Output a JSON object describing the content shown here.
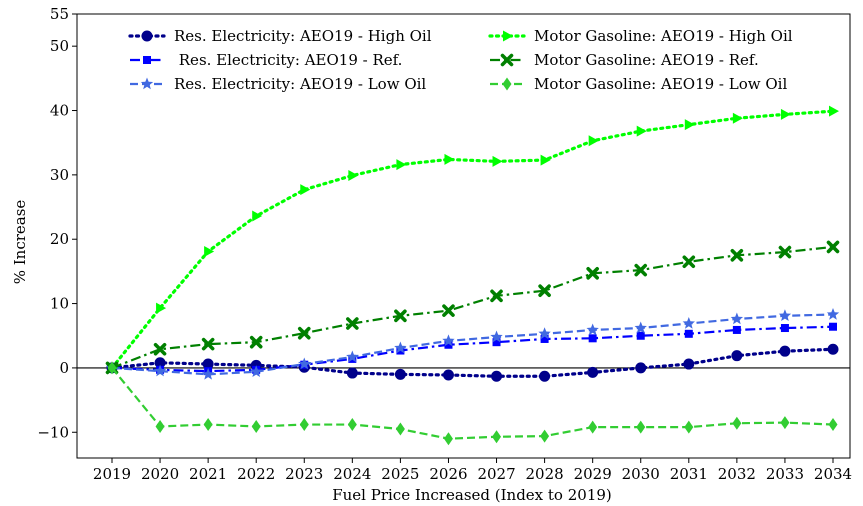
{
  "chart_data": {
    "type": "line",
    "title": "",
    "xlabel": "Fuel Price Increased (Index to 2019)",
    "ylabel": "% Increase",
    "x": [
      "2019",
      "2020",
      "2021",
      "2022",
      "2023",
      "2024",
      "2025",
      "2026",
      "2027",
      "2028",
      "2029",
      "2030",
      "2031",
      "2032",
      "2033",
      "2034"
    ],
    "ylim": [
      -14,
      55
    ],
    "yticks": [
      -10,
      0,
      10,
      20,
      30,
      40,
      50,
      55
    ],
    "ytick_labels": [
      "−10",
      "0",
      "10",
      "20",
      "30",
      "40",
      "50",
      "55"
    ],
    "zero_line": true,
    "grid": false,
    "legend": {
      "placement": "top",
      "columns": 2
    },
    "series": [
      {
        "name": "Res. Electricity: AEO19 - High Oil",
        "color": "#00008b",
        "line_style": "dotted",
        "marker": "circle",
        "values": [
          0,
          0.8,
          0.6,
          0.4,
          0.1,
          -0.8,
          -1.0,
          -1.1,
          -1.3,
          -1.3,
          -0.7,
          0.0,
          0.6,
          1.9,
          2.6,
          2.9
        ]
      },
      {
        "name": " Res. Electricity: AEO19 - Ref.",
        "color": "#0000ff",
        "line_style": "dashdot",
        "marker": "square",
        "values": [
          0,
          -0.3,
          -0.5,
          -0.3,
          0.5,
          1.4,
          2.7,
          3.6,
          4.0,
          4.5,
          4.6,
          5.0,
          5.3,
          5.9,
          6.2,
          6.4
        ]
      },
      {
        "name": "Res. Electricity: AEO19 - Low Oil",
        "color": "#4169e1",
        "line_style": "dashed",
        "marker": "star",
        "values": [
          0,
          -0.5,
          -1.0,
          -0.6,
          0.6,
          1.7,
          3.1,
          4.2,
          4.8,
          5.3,
          5.9,
          6.2,
          6.9,
          7.6,
          8.1,
          8.3
        ]
      },
      {
        "name": "Motor Gasoline: AEO19 - High Oil",
        "color": "#00ff00",
        "line_style": "dotted",
        "marker": "triangle-right",
        "values": [
          0,
          9.3,
          18.1,
          23.6,
          27.7,
          29.9,
          31.6,
          32.4,
          32.1,
          32.3,
          35.3,
          36.8,
          37.8,
          38.8,
          39.4,
          39.9
        ]
      },
      {
        "name": "Motor Gasoline: AEO19 - Ref.",
        "color": "#008000",
        "line_style": "dashdot",
        "marker": "x-filled",
        "values": [
          0,
          2.9,
          3.7,
          4.0,
          5.4,
          6.9,
          8.1,
          8.9,
          11.2,
          12.0,
          14.7,
          15.2,
          16.5,
          17.5,
          18.0,
          18.8
        ]
      },
      {
        "name": "Motor Gasoline: AEO19 - Low Oil",
        "color": "#32cd32",
        "line_style": "dashed",
        "marker": "diamond",
        "values": [
          0,
          -9.1,
          -8.8,
          -9.1,
          -8.8,
          -8.8,
          -9.5,
          -11.0,
          -10.7,
          -10.6,
          -9.2,
          -9.2,
          -9.2,
          -8.6,
          -8.5,
          -8.8
        ]
      }
    ]
  }
}
